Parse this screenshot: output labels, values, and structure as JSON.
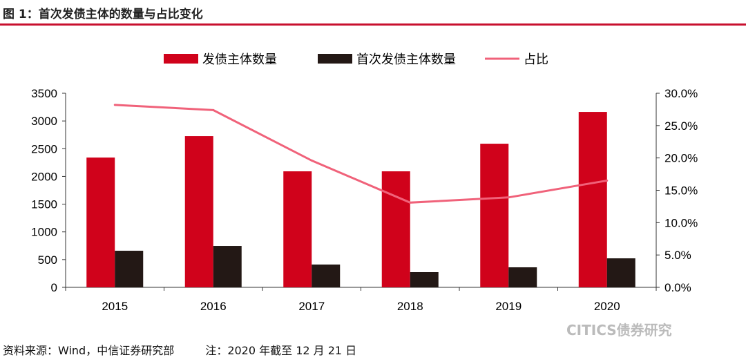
{
  "title": "图 1：首次发债主体的数量与占比变化",
  "footer": {
    "source": "资料来源：Wind，中信证券研究部",
    "note": "注：2020 年截至 12 月 21 日"
  },
  "watermark": "CITICS债券研究",
  "colors": {
    "bar1": "#d0021b",
    "bar2": "#231815",
    "line": "#f0627a",
    "rule": "#c8102e"
  },
  "chart_data": {
    "type": "bar+line",
    "categories": [
      "2015",
      "2016",
      "2017",
      "2018",
      "2019",
      "2020"
    ],
    "series": [
      {
        "name": "发债主体数量",
        "type": "bar",
        "axis": "left",
        "values": [
          2340,
          2727,
          2092,
          2092,
          2590,
          3163
        ]
      },
      {
        "name": "首次发债主体数量",
        "type": "bar",
        "axis": "left",
        "values": [
          660,
          747,
          411,
          274,
          361,
          523
        ]
      },
      {
        "name": "占比",
        "type": "line",
        "axis": "right",
        "values": [
          28.2,
          27.4,
          19.6,
          13.1,
          13.9,
          16.5
        ]
      }
    ],
    "ylim_left": [
      0,
      3500
    ],
    "yticks_left": [
      "0",
      "500",
      "1000",
      "1500",
      "2000",
      "2500",
      "3000",
      "3500"
    ],
    "ylim_right": [
      0,
      30
    ],
    "yticks_right": [
      "0.0%",
      "5.0%",
      "10.0%",
      "15.0%",
      "20.0%",
      "25.0%",
      "30.0%"
    ],
    "legend": "top",
    "grid": false
  }
}
